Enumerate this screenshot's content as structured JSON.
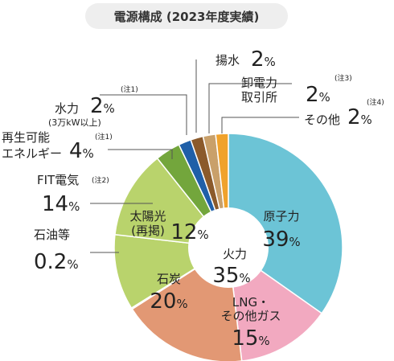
{
  "title": "電源構成 (2023年度実績)",
  "chart_data": {
    "type": "pie",
    "title": "電源構成 (2023年度実績)",
    "unit": "%",
    "slices": [
      {
        "key": "nuclear",
        "label": "原子力",
        "value": 39,
        "display": "39",
        "color": "#6cc4d6"
      },
      {
        "key": "lng",
        "label": "LNG・その他ガス",
        "value": 15,
        "display": "15",
        "color": "#f2a9c0"
      },
      {
        "key": "coal",
        "label": "石炭",
        "value": 20,
        "display": "20",
        "color": "#e29874"
      },
      {
        "key": "oil",
        "label": "石油等",
        "value": 0.2,
        "display": "0.2",
        "color": "#7b4a8a"
      },
      {
        "key": "solar",
        "label": "太陽光(再掲)",
        "value": 12,
        "display": "12",
        "color": "#b9d36c"
      },
      {
        "key": "fit",
        "label": "FIT電気",
        "value": 14,
        "display": "14",
        "color": "#b9d36c"
      },
      {
        "key": "renew",
        "label": "再生可能エネルギー",
        "value": 4,
        "display": "4",
        "color": "#73a63c"
      },
      {
        "key": "hydro",
        "label": "水力",
        "value": 2,
        "display": "2",
        "color": "#1f5fa8"
      },
      {
        "key": "pumped",
        "label": "揚水",
        "value": 2,
        "display": "2",
        "color": "#8b5a2b"
      },
      {
        "key": "wholesale",
        "label": "卸電力取引所",
        "value": 2,
        "display": "2",
        "color": "#c9a06a"
      },
      {
        "key": "other",
        "label": "その他",
        "value": 2,
        "display": "2",
        "color": "#f0a22c"
      }
    ],
    "thermal_total": {
      "label": "火力",
      "value": 35,
      "display": "35"
    }
  },
  "labels": {
    "nuclear": {
      "name": "原子力",
      "value": "39",
      "unit": "%"
    },
    "lng": {
      "name1": "LNG・",
      "name2": "その他ガス",
      "value": "15",
      "unit": "%"
    },
    "coal": {
      "name": "石炭",
      "value": "20",
      "unit": "%"
    },
    "thermal": {
      "name": "火力",
      "value": "35",
      "unit": "%"
    },
    "solar": {
      "name1": "太陽光",
      "name2": "(再掲)",
      "value": "12",
      "unit": "%"
    },
    "oil": {
      "name": "石油等",
      "value": "0.2",
      "unit": "%"
    },
    "fit": {
      "name": "FIT電気",
      "note": "(注2)",
      "value": "14",
      "unit": "%"
    },
    "renew": {
      "name1": "再生可能",
      "name2": "エネルギー",
      "note": "(注1)",
      "value": "4",
      "unit": "%"
    },
    "hydro": {
      "name": "水力",
      "sub": "(3万kW以上)",
      "note": "(注1)",
      "value": "2",
      "unit": "%"
    },
    "pumped": {
      "name": "揚水",
      "value": "2",
      "unit": "%"
    },
    "wholesale": {
      "name1": "卸電力",
      "name2": "取引所",
      "note": "(注3)",
      "value": "2",
      "unit": "%"
    },
    "other": {
      "name": "その他",
      "note": "(注4)",
      "value": "2",
      "unit": "%"
    }
  }
}
